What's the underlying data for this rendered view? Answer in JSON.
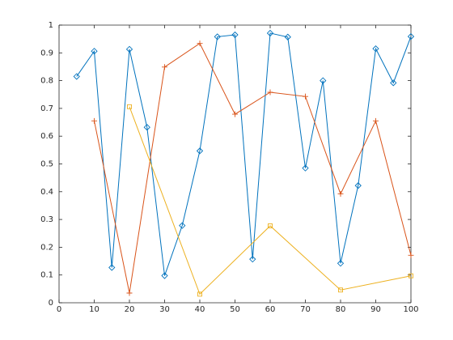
{
  "chart_data": {
    "type": "line",
    "series": [
      {
        "color": "#0072bd",
        "marker": "diamond",
        "x": [
          5,
          10,
          15,
          20,
          25,
          30,
          35,
          40,
          45,
          50,
          55,
          60,
          65,
          70,
          75,
          80,
          85,
          90,
          95,
          100
        ],
        "values": [
          0.815,
          0.906,
          0.127,
          0.913,
          0.632,
          0.0975,
          0.278,
          0.547,
          0.958,
          0.965,
          0.157,
          0.971,
          0.957,
          0.485,
          0.8,
          0.142,
          0.422,
          0.915,
          0.792,
          0.959
        ]
      },
      {
        "color": "#d95319",
        "marker": "plus",
        "x": [
          10,
          20,
          30,
          40,
          50,
          60,
          70,
          80,
          90,
          100
        ],
        "values": [
          0.655,
          0.035,
          0.849,
          0.934,
          0.679,
          0.758,
          0.743,
          0.392,
          0.655,
          0.171
        ]
      },
      {
        "color": "#edb120",
        "marker": "square",
        "x": [
          20,
          40,
          60,
          80,
          100
        ],
        "values": [
          0.706,
          0.031,
          0.277,
          0.046,
          0.097
        ]
      }
    ],
    "xlim": [
      0,
      100
    ],
    "xticks": [
      0,
      10,
      20,
      30,
      40,
      50,
      60,
      70,
      80,
      90,
      100
    ],
    "ylim": [
      0,
      1
    ],
    "yticks": [
      0,
      0.1,
      0.2,
      0.3,
      0.4,
      0.5,
      0.6,
      0.7,
      0.8,
      0.9,
      1
    ],
    "grid": false,
    "box": true
  }
}
